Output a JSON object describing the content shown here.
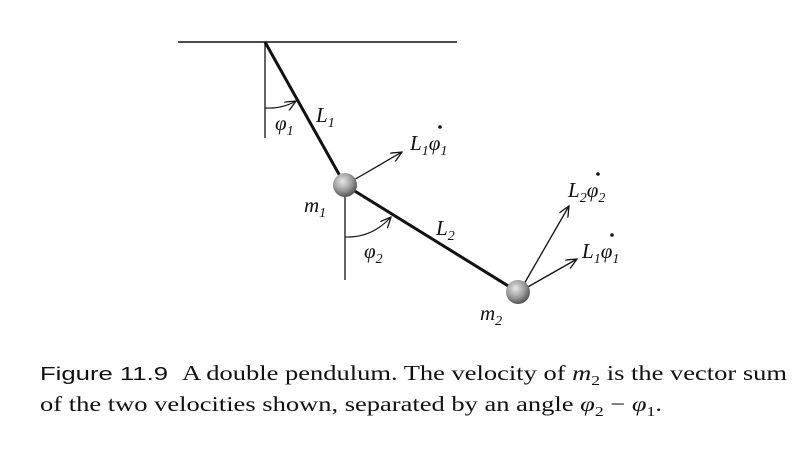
{
  "diagram": {
    "labels": {
      "phi1": {
        "base": "φ",
        "sub": "1"
      },
      "L1": {
        "base": "L",
        "sub": "1"
      },
      "v1": {
        "a": "L",
        "a_sub": "1",
        "b": "φ",
        "b_sub": "1",
        "dotted": true
      },
      "m1": {
        "base": "m",
        "sub": "1"
      },
      "L2": {
        "base": "L",
        "sub": "2"
      },
      "phi2": {
        "base": "φ",
        "sub": "2"
      },
      "v22": {
        "a": "L",
        "a_sub": "2",
        "b": "φ",
        "b_sub": "2",
        "dotted": true
      },
      "v21": {
        "a": "L",
        "a_sub": "1",
        "b": "φ",
        "b_sub": "1",
        "dotted": true
      },
      "m2": {
        "base": "m",
        "sub": "2"
      }
    },
    "colors": {
      "ink": "#111111",
      "mass": "#9a9a9a"
    }
  },
  "caption": {
    "figure_label": "Figure 11.9",
    "line1_a": "A double pendulum. The velocity of ",
    "line1_m": "m",
    "line1_m_sub": "2",
    "line1_b": " is the vector sum",
    "line2_a": "of the two velocities shown, separated by an angle ",
    "line2_phi": "φ",
    "line2_phi_sub_a": "2",
    "line2_minus": " − ",
    "line2_phi_sub_b": "1",
    "line2_end": "."
  }
}
